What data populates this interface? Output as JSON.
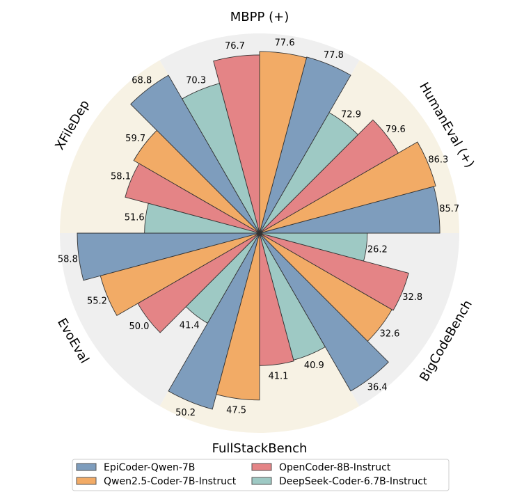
{
  "chart_data": {
    "type": "polar-bar",
    "title": "",
    "categories": [
      "HumanEval (+)",
      "MBPP (+)",
      "XFileDep",
      "EvoEval",
      "FullStackBench",
      "BigCodeBench"
    ],
    "series": [
      {
        "name": "EpiCoder-Qwen-7B",
        "color": "#7e9dbd",
        "values": [
          85.7,
          77.8,
          68.8,
          58.8,
          50.2,
          36.4
        ]
      },
      {
        "name": "Qwen2.5-Coder-7B-Instruct",
        "color": "#f2ab66",
        "values": [
          86.3,
          77.6,
          59.7,
          55.2,
          47.5,
          32.6
        ]
      },
      {
        "name": "OpenCoder-8B-Instruct",
        "color": "#e48486",
        "values": [
          79.6,
          76.7,
          58.1,
          50.0,
          41.1,
          32.8
        ]
      },
      {
        "name": "DeepSeek-Coder-6.7B-Instruct",
        "color": "#9ec9c4",
        "values": [
          72.9,
          70.3,
          51.6,
          41.4,
          40.9,
          26.2
        ]
      }
    ],
    "sector_colors": [
      "#f7f2e4",
      "#efefef",
      "#f7f2e4",
      "#efefef",
      "#f7f2e4",
      "#efefef"
    ],
    "normalization": "per-category",
    "legend_position": "bottom"
  }
}
